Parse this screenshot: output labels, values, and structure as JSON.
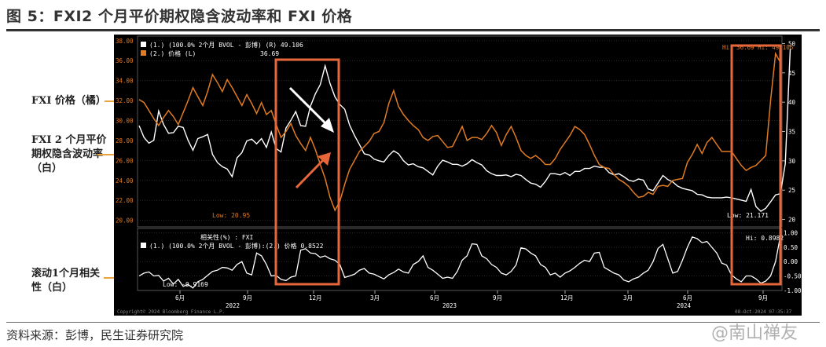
{
  "title": "图 5：FXI2 个月平价期权隐含波动率和 FXI 价格",
  "source": "资料来源：彭博，民生证券研究院",
  "watermark": "@南山禅友",
  "callouts": {
    "price": "FXI 价格（橘）",
    "vol": "FXI 2 个月平价期权隐含波动率（白）",
    "corr": "滚动1个月相关性（白）"
  },
  "colors": {
    "orange": "#e07b22",
    "white": "#ffffff",
    "bg": "#000000",
    "highlight_box": "#e8673a"
  },
  "chart_data": [
    {
      "type": "line",
      "legend": [
        {
          "label": "(1.) (100.0% 2个月 BVOL - 彭博) (R) 49.106",
          "color": "#ffffff"
        },
        {
          "label": "(2.) 价格 (L)",
          "value": "36.69",
          "color": "#e07b22"
        }
      ],
      "x_ticks": [
        "6月",
        "9月",
        "12月",
        "3月",
        "6月",
        "9月",
        "12月",
        "3月",
        "6月",
        "9月"
      ],
      "year_labels": [
        "2022",
        "2023",
        "2024"
      ],
      "left_axis": {
        "ylim": [
          19.5,
          38.3
        ],
        "ticks": [
          "38.00",
          "36.00",
          "34.00",
          "32.00",
          "30.00",
          "28.00",
          "26.00",
          "24.00",
          "22.00",
          "20.00"
        ]
      },
      "right_axis": {
        "ylim": [
          19,
          51
        ],
        "ticks": [
          "50",
          "45",
          "40",
          "35",
          "30",
          "25",
          "20"
        ]
      },
      "annotations": {
        "low_price": "Low: 20.95",
        "low_vol": "Low: 21.171",
        "hi": "Hi: 36.69 Hi: 49.106"
      },
      "series": [
        {
          "name": "价格 (L)",
          "axis": "left",
          "color": "#e07b22",
          "values": [
            32.1,
            31.8,
            31.0,
            30.2,
            29.5,
            30.3,
            31.0,
            30.4,
            29.6,
            30.8,
            32.0,
            33.3,
            32.4,
            31.5,
            32.9,
            34.6,
            33.8,
            32.9,
            34.1,
            33.3,
            32.4,
            31.5,
            32.6,
            31.7,
            30.7,
            31.8,
            30.6,
            31.0,
            29.6,
            28.3,
            28.9,
            29.7,
            28.5,
            27.7,
            27.0,
            28.3,
            27.1,
            25.6,
            24.2,
            22.3,
            21.0,
            21.9,
            23.6,
            25.1,
            26.0,
            26.9,
            27.4,
            27.9,
            28.7,
            28.9,
            29.8,
            31.7,
            33.0,
            31.4,
            30.6,
            30.0,
            29.5,
            29.1,
            28.3,
            28.0,
            28.4,
            28.5,
            27.9,
            27.3,
            27.4,
            28.4,
            29.4,
            28.0,
            28.3,
            28.3,
            28.1,
            28.7,
            29.5,
            28.8,
            27.5,
            28.6,
            29.4,
            28.3,
            27.0,
            26.5,
            26.2,
            26.5,
            26.1,
            25.6,
            25.6,
            26.2,
            27.1,
            27.8,
            28.5,
            29.4,
            29.1,
            28.6,
            27.6,
            26.5,
            25.6,
            25.3,
            25.2,
            24.6,
            24.1,
            23.8,
            23.4,
            22.8,
            22.3,
            22.4,
            22.8,
            22.6,
            23.4,
            23.5,
            23.4,
            24.0,
            24.1,
            24.2,
            25.8,
            26.6,
            27.6,
            26.7,
            27.8,
            28.3,
            27.6,
            26.9,
            26.9,
            26.9,
            26.2,
            25.5,
            25.0,
            25.3,
            25.5,
            26.0,
            26.5,
            32.0,
            36.7,
            35.8
          ]
        },
        {
          "name": "2个月 BVOL (R)",
          "axis": "right",
          "color": "#ffffff",
          "values": [
            36.0,
            34.0,
            33.0,
            33.5,
            38.5,
            36.2,
            34.7,
            34.8,
            35.9,
            35.7,
            33.5,
            31.8,
            33.8,
            34.1,
            34.5,
            31.1,
            29.7,
            29.0,
            28.6,
            27.3,
            30.5,
            31.4,
            33.4,
            33.7,
            32.9,
            33.8,
            32.3,
            34.9,
            32.1,
            31.5,
            35.6,
            36.9,
            38.4,
            36.0,
            35.9,
            39.3,
            41.4,
            43.0,
            46.2,
            43.2,
            40.9,
            39.6,
            38.8,
            36.1,
            34.3,
            32.8,
            31.2,
            31.0,
            30.3,
            30.0,
            29.8,
            30.9,
            31.7,
            31.2,
            30.0,
            29.3,
            29.5,
            29.0,
            28.8,
            28.2,
            27.6,
            29.1,
            30.1,
            29.8,
            29.4,
            29.4,
            29.1,
            29.5,
            30.2,
            29.7,
            29.3,
            28.3,
            27.8,
            27.5,
            27.5,
            27.6,
            27.3,
            27.7,
            27.5,
            26.8,
            26.2,
            26.0,
            25.5,
            26.5,
            27.8,
            27.8,
            27.6,
            28.0,
            27.5,
            28.2,
            28.2,
            28.7,
            28.7,
            29.1,
            28.9,
            28.9,
            28.0,
            27.6,
            27.8,
            27.3,
            26.7,
            26.5,
            26.9,
            26.7,
            25.2,
            24.9,
            26.2,
            27.5,
            26.8,
            26.4,
            25.7,
            25.3,
            25.1,
            24.9,
            24.3,
            24.2,
            23.8,
            23.7,
            23.7,
            23.7,
            23.8,
            23.7,
            23.5,
            23.3,
            23.1,
            25.1,
            22.2,
            21.4,
            21.9,
            23.0,
            24.2,
            24.4,
            29.5,
            49.1
          ]
        }
      ]
    },
    {
      "type": "line",
      "title": "相关性(%) : FXI",
      "legend": [
        {
          "label": "(1.) (100.0% 2个月 BVOL - 彭博):(2.) 价格 0.8522",
          "color": "#ffffff"
        }
      ],
      "y_axis": {
        "ylim": [
          -0.95,
          1.1
        ],
        "ticks": [
          "1.00",
          "0.50",
          "0.00",
          "-0.50",
          "-1.00"
        ]
      },
      "annotations": {
        "low": "Low: -0.9169",
        "hi": "Hi: 0.8982"
      },
      "footer_left": "Copyright© 2024 Bloomberg Finance L.P.",
      "footer_right": "08-Oct-2024 07:35:37",
      "series": [
        {
          "name": "",
          "color": "#ffffff",
          "values": [
            -0.5,
            -0.4,
            -0.36,
            -0.5,
            -0.48,
            -0.68,
            -0.58,
            -0.78,
            -0.62,
            -0.86,
            -0.8,
            -0.92,
            -0.7,
            -0.62,
            -0.48,
            -0.34,
            -0.3,
            -0.2,
            -0.22,
            -0.3,
            -0.1,
            0.0,
            -0.4,
            -0.46,
            0.3,
            0.2,
            -0.1,
            -0.5,
            -0.48,
            -0.62,
            -0.66,
            -0.54,
            -0.5,
            0.4,
            0.45,
            0.3,
            0.28,
            0.15,
            0.2,
            0.1,
            0.05,
            -0.1,
            -0.55,
            -0.5,
            -0.44,
            -0.3,
            -0.24,
            -0.4,
            -0.44,
            -0.52,
            -0.6,
            -0.46,
            -0.38,
            -0.26,
            -0.36,
            -0.4,
            -0.1,
            0.0,
            0.2,
            -0.2,
            -0.3,
            -0.44,
            -0.58,
            -0.54,
            -0.58,
            -0.34,
            0.05,
            0.2,
            0.62,
            0.6,
            0.2,
            0.1,
            -0.1,
            -0.2,
            -0.4,
            -0.46,
            -0.34,
            -0.12,
            0.48,
            0.44,
            0.3,
            0.2,
            -0.1,
            -0.2,
            -0.46,
            -0.4,
            -0.54,
            -0.4,
            -0.32,
            -0.2,
            -0.06,
            0.05,
            0.0,
            0.3,
            0.32,
            -0.2,
            -0.3,
            -0.4,
            -0.46,
            -0.64,
            -0.7,
            -0.6,
            -0.54,
            -0.4,
            -0.3,
            0.0,
            0.46,
            0.6,
            0.1,
            -0.4,
            -0.34,
            0.05,
            0.5,
            0.86,
            0.8,
            0.66,
            0.7,
            0.5,
            0.3,
            -0.05,
            -0.12,
            -0.46,
            -0.6,
            -0.7,
            -0.5,
            -0.5,
            -0.6,
            -0.75,
            -0.68,
            -0.5,
            0.0,
            0.9
          ]
        }
      ]
    }
  ]
}
